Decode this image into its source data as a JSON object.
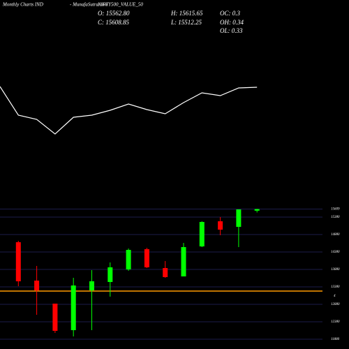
{
  "header": {
    "left": "Monthly Charts IND",
    "brand": "- MunafaSutra.com",
    "symbol": "NIFTY500_VALUE_50",
    "o": "O: 15562.80",
    "h": "H: 15615.65",
    "oc": "OC: 0.3",
    "c": "C: 15608.85",
    "l": "L: 15512.25",
    "oh": "OH: 0.34",
    "ol": "OL: 0.33"
  },
  "chart_data": [
    {
      "type": "line",
      "color": "#ffffff",
      "categories": [
        null,
        null,
        null,
        null,
        null,
        null,
        null,
        null,
        null,
        null,
        null,
        null,
        null,
        null,
        null
      ],
      "values": [
        76,
        35,
        29,
        8,
        32,
        35,
        42,
        51,
        43,
        37,
        53,
        67,
        63,
        74,
        75
      ],
      "ylim": [
        0,
        100
      ]
    },
    {
      "type": "candlestick",
      "up_color": "#00ff00",
      "down_color": "#ff0000",
      "categories": [
        null,
        null,
        null,
        null,
        null,
        null,
        null,
        null,
        null,
        null,
        null,
        null,
        null,
        null
      ],
      "open": [
        14660,
        13560,
        12900,
        12140,
        13280,
        13520,
        13880,
        14460,
        13920,
        13680,
        14540,
        15260,
        15100,
        15562.8
      ],
      "close": [
        13540,
        13280,
        12120,
        13420,
        13540,
        13940,
        14440,
        13940,
        13660,
        14520,
        15240,
        15020,
        15600,
        15608.85
      ],
      "high": [
        14700,
        13980,
        12900,
        13640,
        13860,
        14080,
        14480,
        14500,
        14120,
        14640,
        15260,
        15380,
        15600,
        15615.65
      ],
      "low": [
        13400,
        12580,
        12060,
        11960,
        12140,
        13100,
        13840,
        13920,
        13640,
        13680,
        14520,
        14860,
        14520,
        15512.25
      ],
      "ylim": [
        11600,
        15800
      ],
      "yticks": [
        15609,
        15380,
        14880,
        14380,
        13880,
        13380,
        12880,
        12380,
        11880
      ],
      "grid": true,
      "grid_color": "#1c1c4a",
      "reference_line": {
        "value": 13260,
        "color": "#ff9900",
        "label": "4"
      }
    }
  ]
}
